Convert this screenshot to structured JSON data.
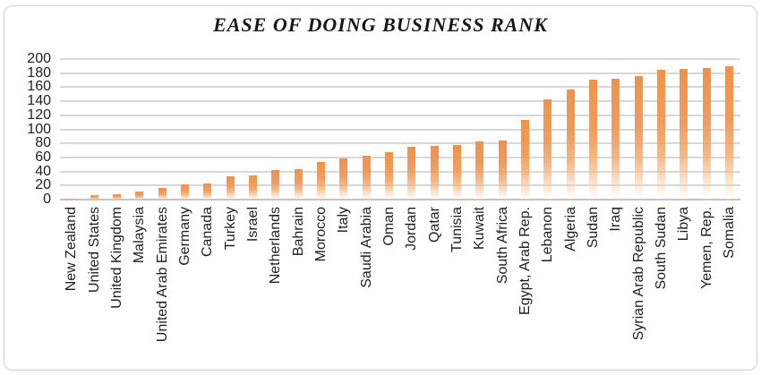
{
  "chart_data": {
    "type": "bar",
    "title": "EASE OF DOING BUSINESS RANK",
    "categories": [
      "New Zealand",
      "United States",
      "United Kingdom",
      "Malaysia",
      "United Arab Emirates",
      "Germany",
      "Canada",
      "Turkey",
      "Israel",
      "Netherlands",
      "Bahrain",
      "Morocco",
      "Italy",
      "Saudi Arabia",
      "Oman",
      "Jordan",
      "Qatar",
      "Tunisia",
      "Kuwait",
      "South Africa",
      "Egypt, Arab Rep.",
      "Lebanon",
      "Algeria",
      "Sudan",
      "Iraq",
      "Syrian Arab Republic",
      "South Sudan",
      "Libya",
      "Yemen, Rep.",
      "Somalia"
    ],
    "values": [
      1,
      6,
      8,
      12,
      16,
      22,
      23,
      33,
      35,
      42,
      43,
      53,
      58,
      62,
      68,
      75,
      77,
      78,
      83,
      84,
      114,
      143,
      157,
      171,
      172,
      176,
      185,
      186,
      187,
      190
    ],
    "xlabel": "",
    "ylabel": "",
    "ylim": [
      0,
      200
    ],
    "ytick_step": 20,
    "yticks": [
      0,
      20,
      40,
      60,
      80,
      100,
      120,
      140,
      160,
      180,
      200
    ],
    "grid": true,
    "legend_position": "none",
    "x_label_rotation_deg": 90,
    "bar_color_top": "#EE9249",
    "bar_color_bottom": "#FDF2E8",
    "gridline_color": "#D7D7D7",
    "axis_line_color": "#C3C3C3",
    "label_color": "#1F1F1F",
    "title_color": "#171717",
    "frame_border_color": "#CFCFCF"
  }
}
